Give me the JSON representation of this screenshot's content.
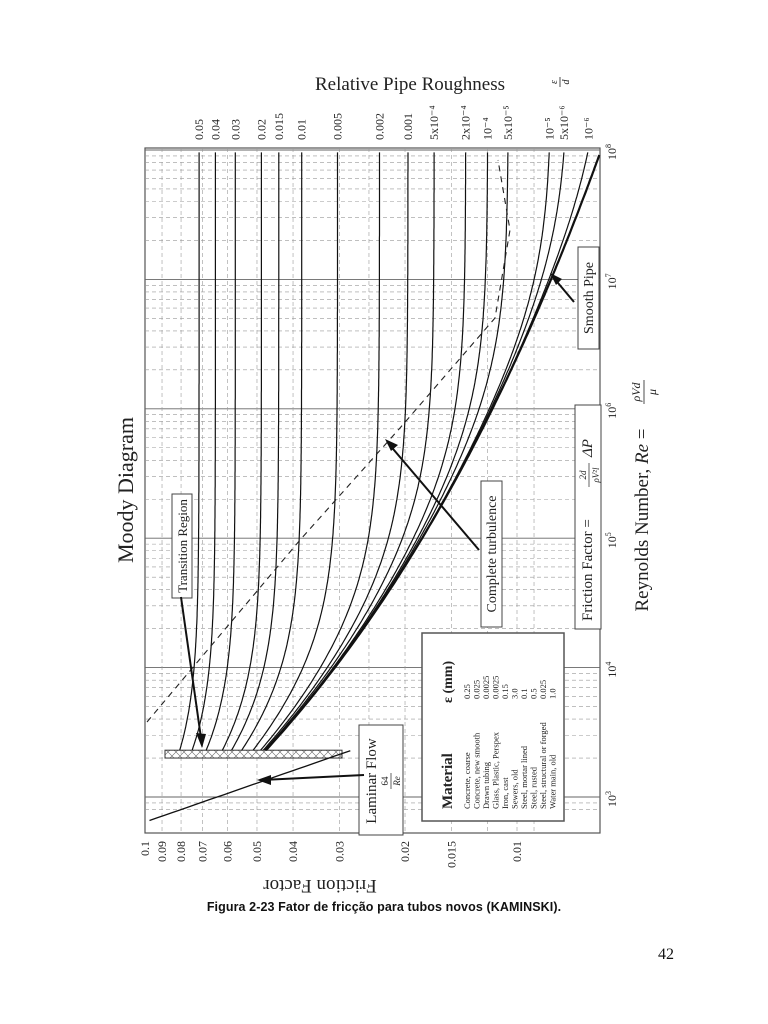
{
  "document": {
    "caption": "Figura 2-23 Fator de fricção para tubos novos (KAMINSKI).",
    "page_number": "42"
  },
  "chart_data": {
    "type": "line",
    "title": "Moody Diagram",
    "orientation_note": "figure printed rotated 90 degrees",
    "xlabel": "Reynolds Number, Re = ρVd/μ",
    "xlabel_text": "Reynolds Numbers, Re =",
    "xlabel_formula_num": "ρVd",
    "xlabel_formula_den": "μ",
    "ylabel": "Friction Factor",
    "right_axis_label": "Relative Pipe Roughness",
    "right_axis_symbol_num": "ε",
    "right_axis_symbol_den": "d",
    "x_scale": "log",
    "y_scale": "log",
    "xlim": [
      1000,
      100000000
    ],
    "ylim": [
      0.008,
      0.1
    ],
    "grid": true,
    "x_ticks": [
      {
        "value": 1000,
        "label": "10",
        "exp": "3"
      },
      {
        "value": 10000,
        "label": "10",
        "exp": "4"
      },
      {
        "value": 100000,
        "label": "10",
        "exp": "5"
      },
      {
        "value": 1000000,
        "label": "10",
        "exp": "6"
      },
      {
        "value": 10000000,
        "label": "10",
        "exp": "7"
      },
      {
        "value": 100000000,
        "label": "10",
        "exp": "8"
      }
    ],
    "y_ticks": [
      {
        "value": 0.1,
        "label": "0.1"
      },
      {
        "value": 0.09,
        "label": "0.09"
      },
      {
        "value": 0.08,
        "label": "0.08"
      },
      {
        "value": 0.07,
        "label": "0.07"
      },
      {
        "value": 0.06,
        "label": "0.06"
      },
      {
        "value": 0.05,
        "label": "0.05"
      },
      {
        "value": 0.04,
        "label": "0.04"
      },
      {
        "value": 0.03,
        "label": "0.03"
      },
      {
        "value": 0.02,
        "label": "0.02"
      },
      {
        "value": 0.015,
        "label": "0.015"
      },
      {
        "value": 0.01,
        "label": "0.01"
      }
    ],
    "series": [
      {
        "name": "0.05",
        "rel_roughness": 0.05
      },
      {
        "name": "0.04",
        "rel_roughness": 0.04
      },
      {
        "name": "0.03",
        "rel_roughness": 0.03
      },
      {
        "name": "0.02",
        "rel_roughness": 0.02
      },
      {
        "name": "0.015",
        "rel_roughness": 0.015
      },
      {
        "name": "0.01",
        "rel_roughness": 0.01
      },
      {
        "name": "0.005",
        "rel_roughness": 0.005
      },
      {
        "name": "0.002",
        "rel_roughness": 0.002
      },
      {
        "name": "0.001",
        "rel_roughness": 0.001
      },
      {
        "name": "5x10⁻⁴",
        "rel_roughness": 0.0005
      },
      {
        "name": "2x10⁻⁴",
        "rel_roughness": 0.0002
      },
      {
        "name": "10⁻⁴",
        "rel_roughness": 0.0001
      },
      {
        "name": "5x10⁻⁵",
        "rel_roughness": 5e-05
      },
      {
        "name": "10⁻⁵",
        "rel_roughness": 1e-05
      },
      {
        "name": "5x10⁻⁶",
        "rel_roughness": 5e-06
      },
      {
        "name": "10⁻⁶",
        "rel_roughness": 1e-06
      },
      {
        "name": "Smooth Pipe",
        "rel_roughness": 0
      }
    ],
    "laminar": {
      "formula": "64/Re",
      "Re_range": [
        600,
        2300
      ]
    },
    "annotations": {
      "transition_region": "Transition Region",
      "laminar_flow": "Laminar Flow",
      "laminar_formula_num": "64",
      "laminar_formula_den": "Re",
      "complete_turbulence": "Complete turbulence",
      "smooth_pipe": "Smooth Pipe",
      "friction_factor_def": "Friction Factor =",
      "friction_factor_num": "2d",
      "friction_factor_den": "ρV²l",
      "friction_factor_tail": "ΔP"
    },
    "material_table": {
      "headers": [
        "Material",
        "ε (mm)"
      ],
      "rows": [
        [
          "Concrete, coarse",
          "0.25"
        ],
        [
          "Concrete, new smooth",
          "0.025"
        ],
        [
          "Drawn tubing",
          "0.0025"
        ],
        [
          "Glass, Plastic, Perspex",
          "0.0025"
        ],
        [
          "Iron, cast",
          "0.15"
        ],
        [
          "Sewers, old",
          "3.0"
        ],
        [
          "Steel, mortar lined",
          "0.1"
        ],
        [
          "Steel, rusted",
          "0.5"
        ],
        [
          "Steel, structural or forged",
          "0.025"
        ],
        [
          "Water main, old",
          "1.0"
        ]
      ]
    }
  }
}
